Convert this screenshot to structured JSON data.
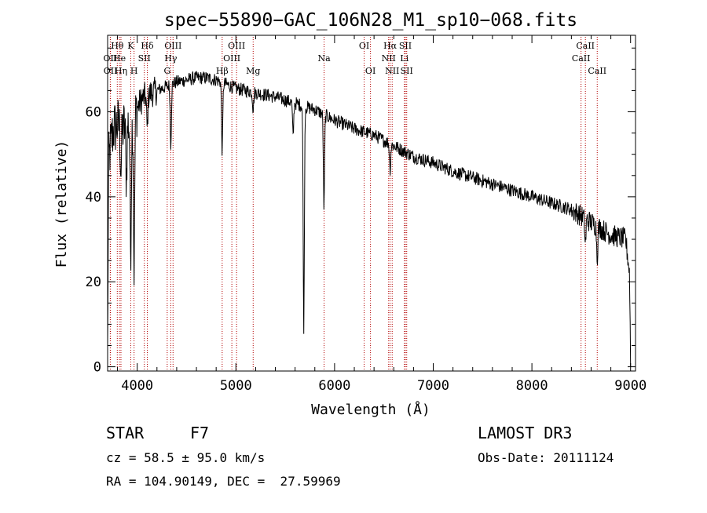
{
  "chart_data": {
    "type": "line",
    "title": "spec−55890−GAC_106N28_M1_sp10−068.fits",
    "xlabel": "Wavelength (Å)",
    "ylabel": "Flux (relative)",
    "xlim": [
      3700,
      9050
    ],
    "ylim": [
      -1,
      78
    ],
    "xticks": [
      4000,
      5000,
      6000,
      7000,
      8000,
      9000
    ],
    "yticks": [
      0,
      20,
      40,
      60
    ],
    "line_color": "#000000",
    "marker_color": "#b30000",
    "spectrum_anchors": [
      [
        3700,
        3
      ],
      [
        3710,
        48
      ],
      [
        3730,
        52
      ],
      [
        3760,
        56
      ],
      [
        3800,
        57
      ],
      [
        3850,
        56
      ],
      [
        3900,
        57
      ],
      [
        3950,
        58
      ],
      [
        4000,
        61
      ],
      [
        4050,
        63
      ],
      [
        4100,
        64
      ],
      [
        4200,
        65
      ],
      [
        4300,
        66
      ],
      [
        4400,
        67
      ],
      [
        4500,
        67.5
      ],
      [
        4600,
        68
      ],
      [
        4700,
        68
      ],
      [
        4800,
        67.5
      ],
      [
        4900,
        66.5
      ],
      [
        5000,
        65.5
      ],
      [
        5100,
        65
      ],
      [
        5200,
        64.5
      ],
      [
        5400,
        63.5
      ],
      [
        5600,
        62
      ],
      [
        5800,
        60.5
      ],
      [
        6000,
        58
      ],
      [
        6200,
        56
      ],
      [
        6400,
        54.5
      ],
      [
        6600,
        52
      ],
      [
        6800,
        49.5
      ],
      [
        7000,
        48
      ],
      [
        7200,
        46
      ],
      [
        7400,
        44.5
      ],
      [
        7600,
        43
      ],
      [
        7800,
        41.5
      ],
      [
        8000,
        40
      ],
      [
        8200,
        38.5
      ],
      [
        8400,
        37
      ],
      [
        8600,
        34
      ],
      [
        8800,
        31
      ],
      [
        8950,
        30
      ],
      [
        8990,
        22
      ],
      [
        9000,
        1
      ]
    ],
    "spectrum_dips": [
      [
        3835,
        10
      ],
      [
        3890,
        12
      ],
      [
        3934,
        30
      ],
      [
        3968,
        36
      ],
      [
        4101,
        8
      ],
      [
        4340,
        14
      ],
      [
        4861,
        16
      ],
      [
        5175,
        4
      ],
      [
        5580,
        8
      ],
      [
        5688,
        52
      ],
      [
        5893,
        22
      ],
      [
        6563,
        6
      ],
      [
        8542,
        6
      ],
      [
        8662,
        7
      ]
    ],
    "lines": [
      {
        "label": "Hθ",
        "wavelength": 3798,
        "row": 1
      },
      {
        "label": "OII",
        "wavelength": 3727,
        "row": 2
      },
      {
        "label": "OII",
        "wavelength": 3729,
        "row": 3
      },
      {
        "label": "He",
        "wavelength": 3820,
        "row": 2
      },
      {
        "label": "Hη",
        "wavelength": 3835,
        "row": 3
      },
      {
        "label": "K",
        "wavelength": 3934,
        "row": 1
      },
      {
        "label": "H",
        "wavelength": 3968,
        "row": 3
      },
      {
        "label": "SII",
        "wavelength": 4072,
        "row": 2
      },
      {
        "label": "Hδ",
        "wavelength": 4102,
        "row": 1
      },
      {
        "label": "OIII",
        "wavelength": 4363,
        "row": 1
      },
      {
        "label": "Hγ",
        "wavelength": 4340,
        "row": 2
      },
      {
        "label": "G",
        "wavelength": 4304,
        "row": 3
      },
      {
        "label": "Hβ",
        "wavelength": 4861,
        "row": 3
      },
      {
        "label": "OIII",
        "wavelength": 5007,
        "row": 1
      },
      {
        "label": "OIII",
        "wavelength": 4959,
        "row": 2
      },
      {
        "label": "Mg",
        "wavelength": 5175,
        "row": 3
      },
      {
        "label": "Na",
        "wavelength": 5894,
        "row": 2
      },
      {
        "label": "OI",
        "wavelength": 6300,
        "row": 1
      },
      {
        "label": "OI",
        "wavelength": 6364,
        "row": 3
      },
      {
        "label": "Hα",
        "wavelength": 6563,
        "row": 1
      },
      {
        "label": "NII",
        "wavelength": 6548,
        "row": 2
      },
      {
        "label": "NII",
        "wavelength": 6584,
        "row": 3
      },
      {
        "label": "SII",
        "wavelength": 6717,
        "row": 1
      },
      {
        "label": "Li",
        "wavelength": 6708,
        "row": 2
      },
      {
        "label": "SII",
        "wavelength": 6731,
        "row": 3
      },
      {
        "label": "CaII",
        "wavelength": 8542,
        "row": 1
      },
      {
        "label": "CaII",
        "wavelength": 8498,
        "row": 2
      },
      {
        "label": "CaII",
        "wavelength": 8662,
        "row": 3
      }
    ]
  },
  "info": {
    "object_class": "STAR",
    "subclass": "F7",
    "redshift": "cz = 58.5 ± 95.0 km/s",
    "coords": "RA = 104.90149, DEC =  27.59969",
    "survey": "LAMOST DR3",
    "obs_date": "Obs-Date: 20111124"
  }
}
